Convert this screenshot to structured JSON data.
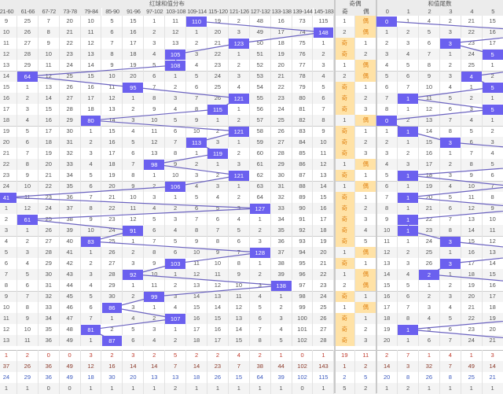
{
  "header": {
    "red_title": "红球和值分布",
    "parity_title": "奇偶",
    "tail_title": "和值尾数",
    "red_columns": [
      "21-60",
      "61-66",
      "67-72",
      "73-78",
      "79-84",
      "85-90",
      "91-96",
      "97-102",
      "103-108",
      "109-114",
      "115-120",
      "121-126",
      "127-132",
      "133-138",
      "139-144",
      "145-183"
    ],
    "parity_columns": [
      "奇",
      "偶"
    ],
    "tail_columns": [
      "0",
      "1",
      "2",
      "3",
      "4",
      "5"
    ]
  },
  "colors": {
    "hit": "#6b60ef",
    "line": "#6b63c0",
    "parity_mark_bg": "#ffe2a6",
    "parity_mark_text": "#e2881c"
  },
  "rows": [
    {
      "sum": 110,
      "red": [
        9,
        25,
        7,
        20,
        10,
        5,
        15,
        1,
        11,
        110,
        19,
        2,
        48,
        16,
        73,
        115
      ],
      "parity": [
        "1",
        "偶"
      ],
      "tail": [
        0,
        1,
        4,
        2,
        21,
        15
      ]
    },
    {
      "sum": 148,
      "red": [
        10,
        26,
        8,
        21,
        11,
        6,
        16,
        2,
        12,
        1,
        20,
        3,
        49,
        17,
        74,
        148
      ],
      "parity": [
        "2",
        "偶"
      ],
      "tail": [
        1,
        2,
        5,
        3,
        22,
        16
      ]
    },
    {
      "sum": 123,
      "red": [
        11,
        27,
        9,
        22,
        12,
        7,
        17,
        3,
        13,
        2,
        21,
        123,
        50,
        18,
        75,
        1
      ],
      "parity": [
        "奇",
        "1"
      ],
      "tail": [
        2,
        3,
        6,
        3,
        23,
        17
      ]
    },
    {
      "sum": 105,
      "red": [
        12,
        28,
        10,
        23,
        13,
        8,
        18,
        4,
        105,
        3,
        22,
        1,
        51,
        19,
        76,
        2
      ],
      "parity": [
        "奇",
        "2"
      ],
      "tail": [
        3,
        4,
        7,
        1,
        24,
        5
      ]
    },
    {
      "sum": 108,
      "red": [
        13,
        29,
        11,
        24,
        14,
        9,
        19,
        5,
        108,
        4,
        23,
        2,
        52,
        20,
        77,
        3
      ],
      "parity": [
        "1",
        "偶"
      ],
      "tail": [
        4,
        5,
        8,
        2,
        25,
        1
      ]
    },
    {
      "sum": 64,
      "red": [
        14,
        64,
        12,
        25,
        15,
        10,
        20,
        6,
        1,
        5,
        24,
        3,
        53,
        21,
        78,
        4
      ],
      "parity": [
        "2",
        "偶"
      ],
      "tail": [
        5,
        6,
        9,
        3,
        4,
        2
      ]
    },
    {
      "sum": 95,
      "red": [
        15,
        1,
        13,
        26,
        16,
        11,
        95,
        7,
        2,
        6,
        25,
        4,
        54,
        22,
        79,
        5
      ],
      "parity": [
        "奇",
        "1"
      ],
      "tail": [
        6,
        7,
        10,
        4,
        1,
        5
      ]
    },
    {
      "sum": 121,
      "red": [
        16,
        2,
        14,
        27,
        17,
        12,
        1,
        8,
        3,
        7,
        26,
        121,
        55,
        23,
        80,
        6
      ],
      "parity": [
        "奇",
        "2"
      ],
      "tail": [
        7,
        1,
        11,
        5,
        2,
        1
      ]
    },
    {
      "sum": 115,
      "red": [
        17,
        3,
        15,
        28,
        18,
        13,
        2,
        9,
        4,
        8,
        115,
        1,
        56,
        24,
        81,
        7
      ],
      "parity": [
        "奇",
        "3"
      ],
      "tail": [
        8,
        1,
        12,
        6,
        3,
        5
      ]
    },
    {
      "sum": 80,
      "red": [
        18,
        4,
        16,
        29,
        80,
        14,
        3,
        10,
        5,
        9,
        1,
        2,
        57,
        25,
        82,
        8
      ],
      "parity": [
        "1",
        "偶"
      ],
      "tail": [
        0,
        2,
        13,
        7,
        4,
        1
      ]
    },
    {
      "sum": 121,
      "red": [
        19,
        5,
        17,
        30,
        1,
        15,
        4,
        11,
        6,
        10,
        2,
        121,
        58,
        26,
        83,
        9
      ],
      "parity": [
        "奇",
        "1"
      ],
      "tail": [
        1,
        1,
        14,
        8,
        5,
        2
      ]
    },
    {
      "sum": 113,
      "red": [
        20,
        6,
        18,
        31,
        2,
        16,
        5,
        12,
        7,
        113,
        3,
        1,
        59,
        27,
        84,
        10
      ],
      "parity": [
        "奇",
        "2"
      ],
      "tail": [
        2,
        1,
        15,
        3,
        6,
        3
      ]
    },
    {
      "sum": 119,
      "red": [
        21,
        7,
        19,
        32,
        3,
        17,
        6,
        13,
        8,
        1,
        119,
        2,
        60,
        28,
        85,
        11
      ],
      "parity": [
        "奇",
        "3"
      ],
      "tail": [
        3,
        2,
        16,
        1,
        7,
        4
      ]
    },
    {
      "sum": 98,
      "red": [
        22,
        8,
        20,
        33,
        4,
        18,
        7,
        98,
        9,
        2,
        1,
        3,
        61,
        29,
        86,
        12
      ],
      "parity": [
        "1",
        "偶"
      ],
      "tail": [
        4,
        3,
        17,
        2,
        8,
        5
      ]
    },
    {
      "sum": 121,
      "red": [
        23,
        9,
        21,
        34,
        5,
        19,
        8,
        1,
        10,
        3,
        2,
        121,
        62,
        30,
        87,
        13
      ],
      "parity": [
        "奇",
        "1"
      ],
      "tail": [
        5,
        1,
        18,
        3,
        9,
        6
      ]
    },
    {
      "sum": 106,
      "red": [
        24,
        10,
        22,
        35,
        6,
        20,
        9,
        2,
        106,
        4,
        3,
        1,
        63,
        31,
        88,
        14
      ],
      "parity": [
        "1",
        "偶"
      ],
      "tail": [
        6,
        1,
        19,
        4,
        10,
        7
      ]
    },
    {
      "sum": 41,
      "red": [
        41,
        11,
        23,
        36,
        7,
        21,
        10,
        3,
        1,
        5,
        4,
        2,
        64,
        32,
        89,
        15
      ],
      "parity": [
        "奇",
        "1"
      ],
      "tail": [
        7,
        1,
        20,
        5,
        11,
        8
      ]
    },
    {
      "sum": 127,
      "red": [
        1,
        12,
        24,
        37,
        8,
        22,
        11,
        4,
        2,
        6,
        5,
        3,
        127,
        33,
        90,
        16
      ],
      "parity": [
        "奇",
        "2"
      ],
      "tail": [
        8,
        1,
        21,
        6,
        12,
        9
      ]
    },
    {
      "sum": 61,
      "red": [
        2,
        61,
        25,
        38,
        9,
        23,
        12,
        5,
        3,
        7,
        6,
        4,
        1,
        34,
        91,
        17
      ],
      "parity": [
        "奇",
        "3"
      ],
      "tail": [
        9,
        1,
        22,
        7,
        13,
        10
      ]
    },
    {
      "sum": 91,
      "red": [
        3,
        1,
        26,
        39,
        10,
        24,
        91,
        6,
        4,
        8,
        7,
        5,
        2,
        35,
        92,
        18
      ],
      "parity": [
        "奇",
        "4"
      ],
      "tail": [
        10,
        1,
        23,
        8,
        14,
        11
      ]
    },
    {
      "sum": 83,
      "red": [
        4,
        2,
        27,
        40,
        83,
        25,
        1,
        7,
        5,
        9,
        8,
        6,
        3,
        36,
        93,
        19
      ],
      "parity": [
        "奇",
        "5"
      ],
      "tail": [
        11,
        1,
        24,
        3,
        15,
        12
      ]
    },
    {
      "sum": 128,
      "red": [
        5,
        3,
        28,
        41,
        1,
        26,
        2,
        8,
        6,
        10,
        9,
        7,
        128,
        37,
        94,
        20
      ],
      "parity": [
        "1",
        "偶"
      ],
      "tail": [
        12,
        2,
        25,
        1,
        16,
        13
      ]
    },
    {
      "sum": 103,
      "red": [
        6,
        4,
        29,
        42,
        2,
        27,
        3,
        9,
        103,
        11,
        10,
        8,
        1,
        38,
        95,
        21
      ],
      "parity": [
        "奇",
        "1"
      ],
      "tail": [
        13,
        3,
        26,
        3,
        17,
        14
      ]
    },
    {
      "sum": 92,
      "red": [
        7,
        5,
        30,
        43,
        3,
        28,
        92,
        10,
        1,
        12,
        11,
        9,
        2,
        39,
        96,
        22
      ],
      "parity": [
        "1",
        "偶"
      ],
      "tail": [
        14,
        4,
        2,
        1,
        18,
        15
      ]
    },
    {
      "sum": 138,
      "red": [
        8,
        6,
        31,
        44,
        4,
        29,
        1,
        11,
        2,
        13,
        12,
        10,
        3,
        138,
        97,
        23
      ],
      "parity": [
        "2",
        "偶"
      ],
      "tail": [
        15,
        5,
        1,
        2,
        19,
        16
      ]
    },
    {
      "sum": 99,
      "red": [
        9,
        7,
        32,
        45,
        5,
        30,
        2,
        99,
        3,
        14,
        13,
        11,
        4,
        1,
        98,
        24
      ],
      "parity": [
        "奇",
        "1"
      ],
      "tail": [
        16,
        6,
        2,
        3,
        20,
        17
      ]
    },
    {
      "sum": 86,
      "red": [
        10,
        8,
        33,
        46,
        6,
        86,
        3,
        1,
        4,
        15,
        14,
        12,
        5,
        2,
        99,
        25
      ],
      "parity": [
        "1",
        "偶"
      ],
      "tail": [
        17,
        7,
        3,
        4,
        21,
        18
      ]
    },
    {
      "sum": 107,
      "red": [
        11,
        9,
        34,
        47,
        7,
        1,
        4,
        2,
        107,
        16,
        15,
        13,
        6,
        3,
        100,
        26
      ],
      "parity": [
        "奇",
        "1"
      ],
      "tail": [
        18,
        8,
        4,
        5,
        22,
        19
      ]
    },
    {
      "sum": 81,
      "red": [
        12,
        10,
        35,
        48,
        81,
        2,
        5,
        3,
        1,
        17,
        16,
        14,
        7,
        4,
        101,
        27
      ],
      "parity": [
        "奇",
        "2"
      ],
      "tail": [
        19,
        1,
        5,
        6,
        23,
        20
      ]
    },
    {
      "sum": 87,
      "red": [
        13,
        11,
        36,
        49,
        1,
        87,
        6,
        4,
        2,
        18,
        17,
        15,
        8,
        5,
        102,
        28
      ],
      "parity": [
        "奇",
        "3"
      ],
      "tail": [
        20,
        1,
        6,
        7,
        24,
        21
      ]
    }
  ],
  "stats": [
    [
      1,
      2,
      0,
      0,
      3,
      2,
      3,
      2,
      5,
      2,
      2,
      4,
      2,
      1,
      0,
      1,
      19,
      11,
      2,
      7,
      1,
      4,
      1,
      3
    ],
    [
      37,
      26,
      36,
      49,
      12,
      16,
      14,
      14,
      7,
      14,
      23,
      7,
      38,
      44,
      102,
      143,
      1,
      2,
      14,
      3,
      32,
      7,
      49,
      14
    ],
    [
      24,
      29,
      36,
      49,
      18,
      30,
      20,
      13,
      13,
      18,
      26,
      15,
      64,
      39,
      102,
      115,
      2,
      5,
      20,
      8,
      26,
      8,
      25,
      21
    ],
    [
      1,
      1,
      0,
      0,
      1,
      1,
      1,
      1,
      2,
      1,
      1,
      1,
      1,
      1,
      0,
      1,
      5,
      2,
      1,
      2,
      1,
      1,
      1,
      1
    ]
  ]
}
